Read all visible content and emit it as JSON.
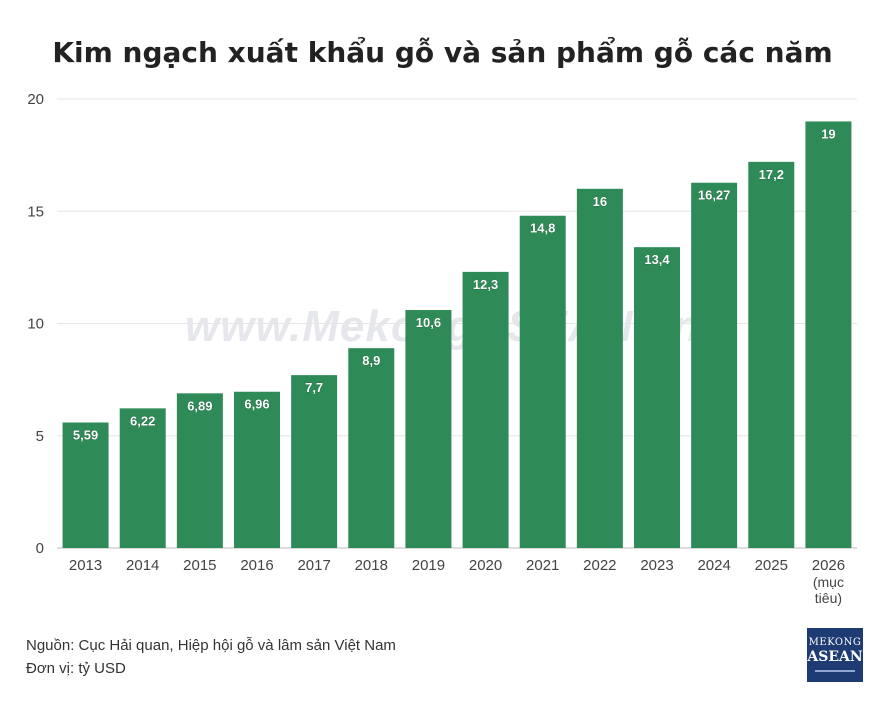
{
  "title": "Kim ngạch xuất khẩu gỗ và sản phẩm gỗ các năm",
  "watermark": "www.MekongASEAN.vn",
  "source_text": "Nguồn: Cục Hải quan, Hiệp hội gỗ và lâm sản Việt Nam",
  "unit_text": "Đơn vị: tỷ USD",
  "logo": {
    "line1": "MEKONG",
    "line2": "ASEAN"
  },
  "colors": {
    "bar": "#2e8b57",
    "grid": "#e6e6e6",
    "label": "#ffffff",
    "logo_bg": "#1f3b73"
  },
  "chart_data": {
    "type": "bar",
    "categories": [
      "2013",
      "2014",
      "2015",
      "2016",
      "2017",
      "2018",
      "2019",
      "2020",
      "2021",
      "2022",
      "2023",
      "2024",
      "2025",
      "2026"
    ],
    "category_sublabels": {
      "2026": [
        "(mục",
        "tiêu)"
      ]
    },
    "values": [
      5.59,
      6.22,
      6.89,
      6.96,
      7.7,
      8.9,
      10.6,
      12.3,
      14.8,
      16,
      13.4,
      16.27,
      17.2,
      19
    ],
    "value_labels": [
      "5,59",
      "6,22",
      "6,89",
      "6,96",
      "7,7",
      "8,9",
      "10,6",
      "12,3",
      "14,8",
      "16",
      "13,4",
      "16,27",
      "17,2",
      "19"
    ],
    "yticks": [
      0,
      5,
      10,
      15,
      20
    ],
    "ylim": [
      0,
      20
    ],
    "grid": true,
    "xlabel": "",
    "ylabel": ""
  }
}
